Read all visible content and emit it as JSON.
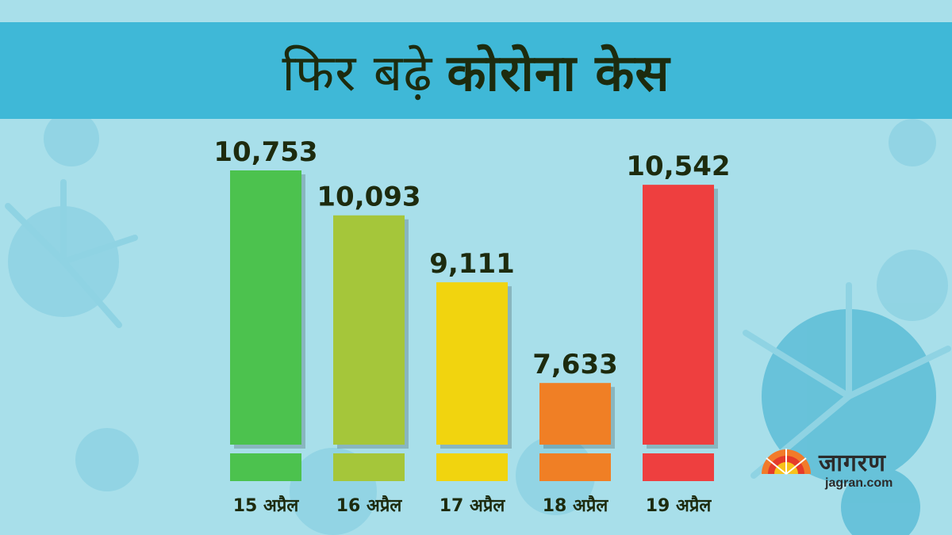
{
  "header": {
    "title_part1": "फिर बढ़े",
    "title_part2": "कोरोना केस"
  },
  "logo": {
    "name": "जागरण",
    "site": "jagran.com"
  },
  "chart_data": {
    "type": "bar",
    "title": "फिर बढ़े कोरोना केस",
    "categories": [
      "15 अप्रैल",
      "16 अप्रैल",
      "17 अप्रैल",
      "18 अप्रैल",
      "19 अप्रैल"
    ],
    "values": [
      10753,
      10093,
      9111,
      7633,
      10542
    ],
    "value_labels": [
      "10,753",
      "10,093",
      "9,111",
      "7,633",
      "10,542"
    ],
    "bar_colors": [
      "#4cc24e",
      "#a5c63a",
      "#f1d40f",
      "#f07f25",
      "#ee3f3f"
    ],
    "axis_break": true,
    "grid": false,
    "xlabel": "",
    "ylabel": ""
  },
  "colors": {
    "background": "#a8dfea",
    "title_band": "#3fb8d7",
    "text_dark": "#1d2b0e"
  }
}
